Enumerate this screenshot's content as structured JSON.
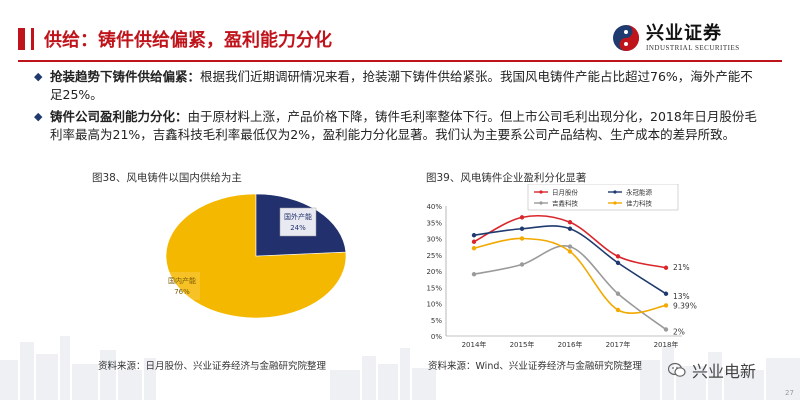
{
  "title": "供给：铸件供给偏紧，盈利能力分化",
  "logo": {
    "cn": "兴业证券",
    "en": "INDUSTRIAL SECURITIES"
  },
  "bullets": [
    {
      "lead": "抢装趋势下铸件供给偏紧：",
      "text": "根据我们近期调研情况来看，抢装潮下铸件供给紧张。我国风电铸件产能占比超过76%，海外产能不足25%。"
    },
    {
      "lead": "铸件公司盈利能力分化：",
      "text": "由于原材料上涨，产品价格下降，铸件毛利率整体下行。但上市公司毛利出现分化，2018年日月股份毛利率最高为21%，吉鑫科技毛利率最低仅为2%，盈利能力分化显著。我们认为主要系公司产品结构、生产成本的差异所致。"
    }
  ],
  "colors": {
    "accent": "#c0141c",
    "navy": "#1f3a6e"
  },
  "chart_data": [
    {
      "type": "pie",
      "title": "图38、风电铸件以国内供给为主",
      "categories": [
        "国内产能",
        "国外产能"
      ],
      "values": [
        76,
        24
      ],
      "value_labels": [
        "76%",
        "24%"
      ],
      "colors": [
        "#f5b800",
        "#22316e"
      ],
      "source": "资料来源：日月股份、兴业证券经济与金融研究院整理"
    },
    {
      "type": "line",
      "title": "图39、风电铸件企业盈利分化显著",
      "categories": [
        "2014年",
        "2015年",
        "2016年",
        "2017年",
        "2018年"
      ],
      "series": [
        {
          "name": "日月股份",
          "values": [
            29,
            36.5,
            35,
            24.5,
            21
          ],
          "color": "#d9262b",
          "end_label": "21%"
        },
        {
          "name": "永冠能源",
          "values": [
            31,
            33,
            33,
            22.5,
            13
          ],
          "color": "#1f3a6e",
          "end_label": "13%"
        },
        {
          "name": "吉鑫科技",
          "values": [
            19,
            22,
            27.5,
            13,
            2
          ],
          "color": "#9a9a9a",
          "end_label": "2%"
        },
        {
          "name": "佳力科技",
          "values": [
            27,
            30,
            26,
            8,
            9.39
          ],
          "color": "#f2a900",
          "end_label": "9.39%"
        }
      ],
      "yticks": [
        "0%",
        "5%",
        "10%",
        "15%",
        "20%",
        "25%",
        "30%",
        "35%",
        "40%"
      ],
      "ylim": [
        0,
        40
      ],
      "legend": "top",
      "source": "资料来源：Wind、兴业证券经济与金融研究院整理"
    }
  ],
  "footer": {
    "brand": "兴业电新",
    "page": "27"
  }
}
